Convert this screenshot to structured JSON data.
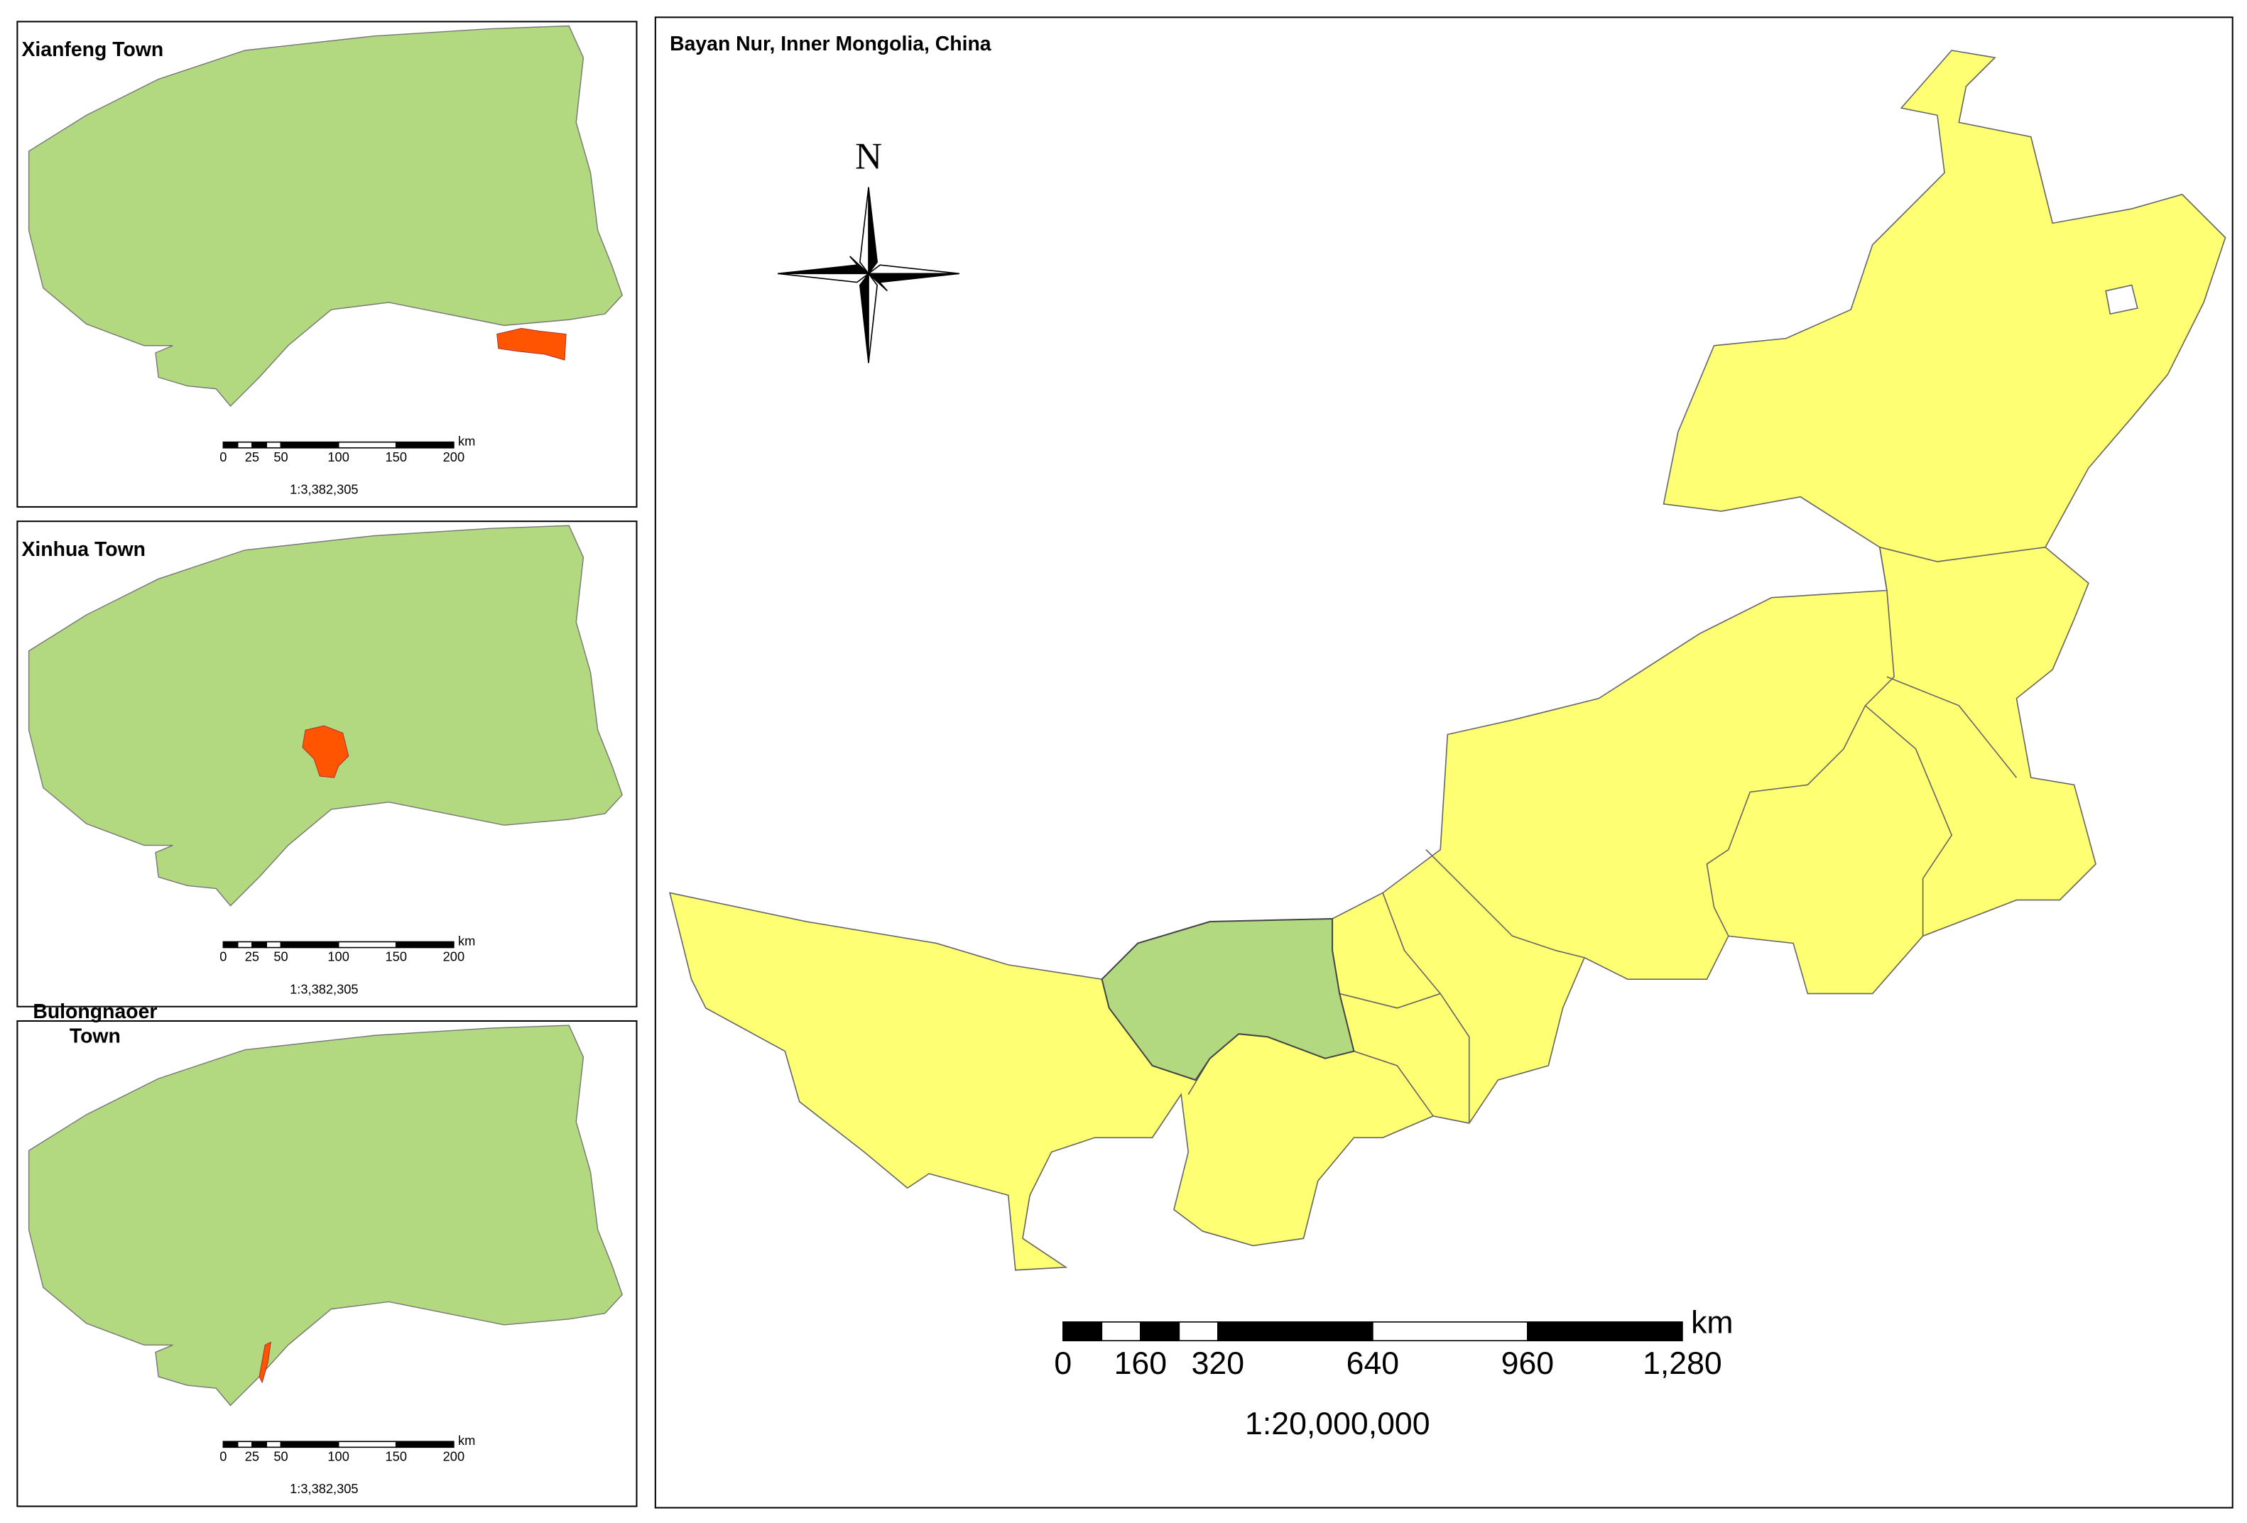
{
  "main_map": {
    "title": "Bayan Nur, Inner Mongolia, China",
    "north_label": "N",
    "scale_bar": {
      "labels": [
        "0",
        "160",
        "320",
        "640",
        "960",
        "1,280"
      ],
      "unit": "km",
      "ratio": "1:20,000,000"
    }
  },
  "insets": [
    {
      "title": "Xianfeng Town",
      "scale_bar": {
        "labels": [
          "0",
          "25",
          "50",
          "100",
          "150",
          "200"
        ],
        "unit": "km",
        "ratio": "1:3,382,305"
      }
    },
    {
      "title": "Xinhua Town",
      "scale_bar": {
        "labels": [
          "0",
          "25",
          "50",
          "100",
          "150",
          "200"
        ],
        "unit": "km",
        "ratio": "1:3,382,305"
      }
    },
    {
      "title": "Bulongnaoer Town",
      "scale_bar": {
        "labels": [
          "0",
          "25",
          "50",
          "100",
          "150",
          "200"
        ],
        "unit": "km",
        "ratio": "1:3,382,305"
      }
    }
  ]
}
